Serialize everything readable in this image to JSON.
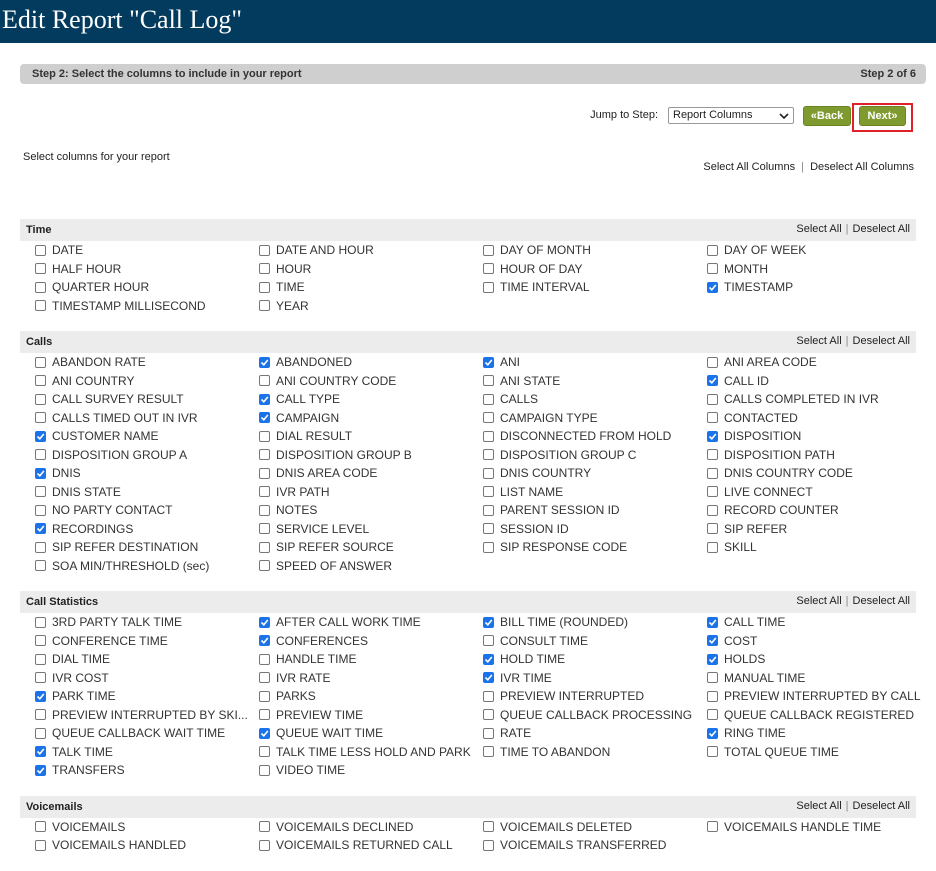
{
  "header": {
    "title": "Edit Report \"Call Log\""
  },
  "step_bar": {
    "text": "Step 2: Select the columns to include in your report",
    "step": "Step 2 of 6"
  },
  "nav": {
    "jump_label": "Jump to Step:",
    "jump_value": "Report Columns",
    "back": "«Back",
    "next": "Next»"
  },
  "intro": "Select columns for your report",
  "select_all_columns": "Select All Columns",
  "deselect_all_columns": "Deselect All Columns",
  "separator": "|",
  "sections": [
    {
      "name": "Time",
      "select_all": "Select All",
      "deselect_all": "Deselect All",
      "items": [
        {
          "label": "DATE",
          "checked": false
        },
        {
          "label": "DATE AND HOUR",
          "checked": false
        },
        {
          "label": "DAY OF MONTH",
          "checked": false
        },
        {
          "label": "DAY OF WEEK",
          "checked": false
        },
        {
          "label": "HALF HOUR",
          "checked": false
        },
        {
          "label": "HOUR",
          "checked": false
        },
        {
          "label": "HOUR OF DAY",
          "checked": false
        },
        {
          "label": "MONTH",
          "checked": false
        },
        {
          "label": "QUARTER HOUR",
          "checked": false
        },
        {
          "label": "TIME",
          "checked": false
        },
        {
          "label": "TIME INTERVAL",
          "checked": false
        },
        {
          "label": "TIMESTAMP",
          "checked": true
        },
        {
          "label": "TIMESTAMP MILLISECOND",
          "checked": false
        },
        {
          "label": "YEAR",
          "checked": false
        }
      ]
    },
    {
      "name": "Calls",
      "select_all": "Select All",
      "deselect_all": "Deselect All",
      "items": [
        {
          "label": "ABANDON RATE",
          "checked": false
        },
        {
          "label": "ABANDONED",
          "checked": true
        },
        {
          "label": "ANI",
          "checked": true
        },
        {
          "label": "ANI AREA CODE",
          "checked": false
        },
        {
          "label": "ANI COUNTRY",
          "checked": false
        },
        {
          "label": "ANI COUNTRY CODE",
          "checked": false
        },
        {
          "label": "ANI STATE",
          "checked": false
        },
        {
          "label": "CALL ID",
          "checked": true
        },
        {
          "label": "CALL SURVEY RESULT",
          "checked": false
        },
        {
          "label": "CALL TYPE",
          "checked": true
        },
        {
          "label": "CALLS",
          "checked": false
        },
        {
          "label": "CALLS COMPLETED IN IVR",
          "checked": false
        },
        {
          "label": "CALLS TIMED OUT IN IVR",
          "checked": false
        },
        {
          "label": "CAMPAIGN",
          "checked": true
        },
        {
          "label": "CAMPAIGN TYPE",
          "checked": false
        },
        {
          "label": "CONTACTED",
          "checked": false
        },
        {
          "label": "CUSTOMER NAME",
          "checked": true
        },
        {
          "label": "DIAL RESULT",
          "checked": false
        },
        {
          "label": "DISCONNECTED FROM HOLD",
          "checked": false
        },
        {
          "label": "DISPOSITION",
          "checked": true
        },
        {
          "label": "DISPOSITION GROUP A",
          "checked": false
        },
        {
          "label": "DISPOSITION GROUP B",
          "checked": false
        },
        {
          "label": "DISPOSITION GROUP C",
          "checked": false
        },
        {
          "label": "DISPOSITION PATH",
          "checked": false
        },
        {
          "label": "DNIS",
          "checked": true
        },
        {
          "label": "DNIS AREA CODE",
          "checked": false
        },
        {
          "label": "DNIS COUNTRY",
          "checked": false
        },
        {
          "label": "DNIS COUNTRY CODE",
          "checked": false
        },
        {
          "label": "DNIS STATE",
          "checked": false
        },
        {
          "label": "IVR PATH",
          "checked": false
        },
        {
          "label": "LIST NAME",
          "checked": false
        },
        {
          "label": "LIVE CONNECT",
          "checked": false
        },
        {
          "label": "NO PARTY CONTACT",
          "checked": false
        },
        {
          "label": "NOTES",
          "checked": false
        },
        {
          "label": "PARENT SESSION ID",
          "checked": false
        },
        {
          "label": "RECORD COUNTER",
          "checked": false
        },
        {
          "label": "RECORDINGS",
          "checked": true
        },
        {
          "label": "SERVICE LEVEL",
          "checked": false
        },
        {
          "label": "SESSION ID",
          "checked": false
        },
        {
          "label": "SIP REFER",
          "checked": false
        },
        {
          "label": "SIP REFER DESTINATION",
          "checked": false
        },
        {
          "label": "SIP REFER SOURCE",
          "checked": false
        },
        {
          "label": "SIP RESPONSE CODE",
          "checked": false
        },
        {
          "label": "SKILL",
          "checked": false
        },
        {
          "label": "SOA MIN/THRESHOLD (sec)",
          "checked": false
        },
        {
          "label": "SPEED OF ANSWER",
          "checked": false
        }
      ]
    },
    {
      "name": "Call Statistics",
      "select_all": "Select All",
      "deselect_all": "Deselect All",
      "items": [
        {
          "label": "3RD PARTY TALK TIME",
          "checked": false
        },
        {
          "label": "AFTER CALL WORK TIME",
          "checked": true
        },
        {
          "label": "BILL TIME (ROUNDED)",
          "checked": true
        },
        {
          "label": "CALL TIME",
          "checked": true
        },
        {
          "label": "CONFERENCE TIME",
          "checked": false
        },
        {
          "label": "CONFERENCES",
          "checked": true
        },
        {
          "label": "CONSULT TIME",
          "checked": false
        },
        {
          "label": "COST",
          "checked": true
        },
        {
          "label": "DIAL TIME",
          "checked": false
        },
        {
          "label": "HANDLE TIME",
          "checked": false
        },
        {
          "label": "HOLD TIME",
          "checked": true
        },
        {
          "label": "HOLDS",
          "checked": true
        },
        {
          "label": "IVR COST",
          "checked": false
        },
        {
          "label": "IVR RATE",
          "checked": false
        },
        {
          "label": "IVR TIME",
          "checked": true
        },
        {
          "label": "MANUAL TIME",
          "checked": false
        },
        {
          "label": "PARK TIME",
          "checked": true
        },
        {
          "label": "PARKS",
          "checked": false
        },
        {
          "label": "PREVIEW INTERRUPTED",
          "checked": false
        },
        {
          "label": "PREVIEW INTERRUPTED BY CALL",
          "checked": false
        },
        {
          "label": "PREVIEW INTERRUPTED BY SKI...",
          "checked": false
        },
        {
          "label": "PREVIEW TIME",
          "checked": false
        },
        {
          "label": "QUEUE CALLBACK PROCESSING",
          "checked": false
        },
        {
          "label": "QUEUE CALLBACK REGISTERED",
          "checked": false
        },
        {
          "label": "QUEUE CALLBACK WAIT TIME",
          "checked": false
        },
        {
          "label": "QUEUE WAIT TIME",
          "checked": true
        },
        {
          "label": "RATE",
          "checked": false
        },
        {
          "label": "RING TIME",
          "checked": true
        },
        {
          "label": "TALK TIME",
          "checked": true
        },
        {
          "label": "TALK TIME LESS HOLD AND PARK",
          "checked": false
        },
        {
          "label": "TIME TO ABANDON",
          "checked": false
        },
        {
          "label": "TOTAL QUEUE TIME",
          "checked": false
        },
        {
          "label": "TRANSFERS",
          "checked": true
        },
        {
          "label": "VIDEO TIME",
          "checked": false
        }
      ]
    },
    {
      "name": "Voicemails",
      "select_all": "Select All",
      "deselect_all": "Deselect All",
      "items": [
        {
          "label": "VOICEMAILS",
          "checked": false
        },
        {
          "label": "VOICEMAILS DECLINED",
          "checked": false
        },
        {
          "label": "VOICEMAILS DELETED",
          "checked": false
        },
        {
          "label": "VOICEMAILS HANDLE TIME",
          "checked": false
        },
        {
          "label": "VOICEMAILS HANDLED",
          "checked": false
        },
        {
          "label": "VOICEMAILS RETURNED CALL",
          "checked": false
        },
        {
          "label": "VOICEMAILS TRANSFERRED",
          "checked": false
        }
      ]
    }
  ]
}
